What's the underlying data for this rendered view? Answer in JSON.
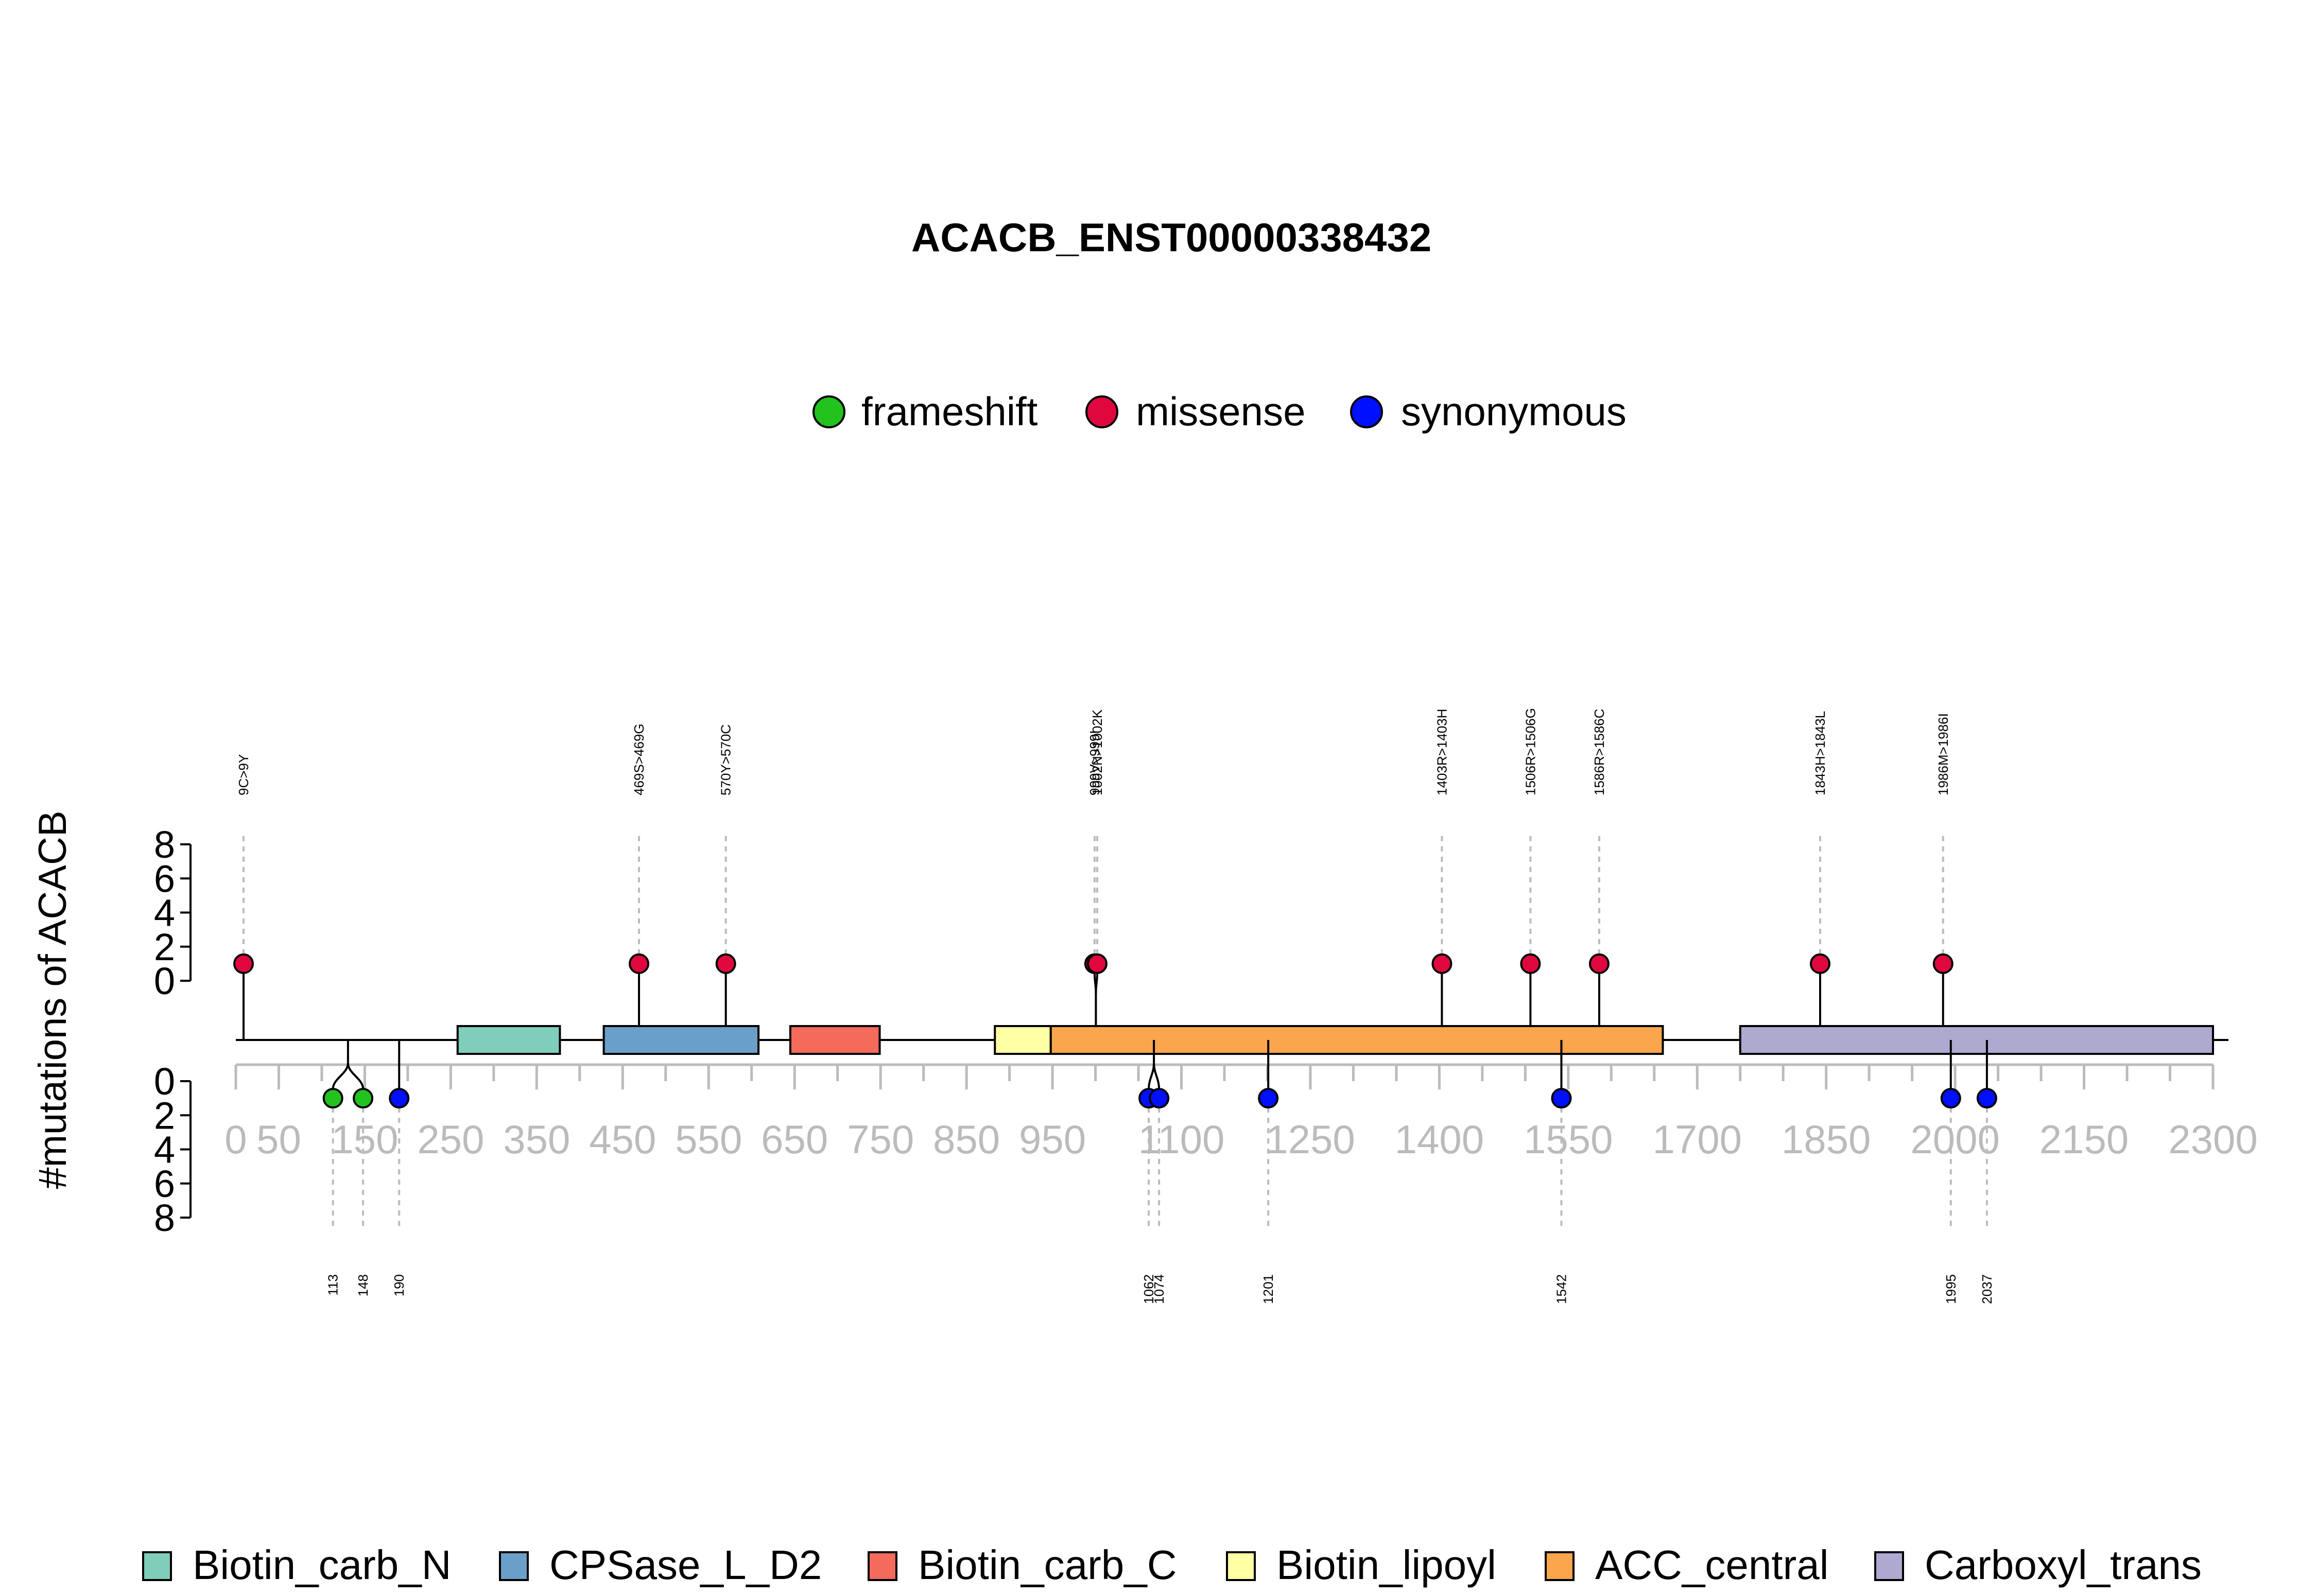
{
  "chart_data": {
    "type": "lollipop",
    "title": "ACACB_ENST00000338432",
    "ylabel": "#mutations of ACACB",
    "legend_position": "top-center",
    "domain_legend_position": "bottom",
    "x_ticks": [
      0,
      50,
      150,
      250,
      350,
      450,
      550,
      650,
      750,
      850,
      950,
      1100,
      1250,
      1400,
      1550,
      1700,
      1850,
      2000,
      2150,
      2300
    ],
    "x_range": [
      0,
      2300
    ],
    "y_range": [
      0,
      8
    ],
    "y_ticks": [
      0,
      2,
      4,
      6,
      8
    ],
    "mutation_types": [
      {
        "name": "frameshift",
        "color": "#22c21f"
      },
      {
        "name": "missense",
        "color": "#e0073f"
      },
      {
        "name": "synonymous",
        "color": "#0010ff"
      }
    ],
    "domains": [
      {
        "name": "Biotin_carb_N",
        "start": 258,
        "end": 377,
        "color": "#7fcdbb"
      },
      {
        "name": "CPSase_L_D2",
        "start": 428,
        "end": 608,
        "color": "#6a9fc9"
      },
      {
        "name": "Biotin_carb_C",
        "start": 645,
        "end": 749,
        "color": "#f46a5b"
      },
      {
        "name": "Biotin_lipoyl",
        "start": 883,
        "end": 948,
        "color": "#ffffa5"
      },
      {
        "name": "ACC_central",
        "start": 948,
        "end": 1660,
        "color": "#fba54d"
      },
      {
        "name": "Carboxyl_trans",
        "start": 1750,
        "end": 2300,
        "color": "#ada9d1"
      }
    ],
    "upper_mutations": [
      {
        "pos": 9,
        "label": "9C>9Y",
        "type": "missense",
        "count": 1
      },
      {
        "pos": 469,
        "label": "469S>469G",
        "type": "missense",
        "count": 1
      },
      {
        "pos": 570,
        "label": "570Y>570C",
        "type": "missense",
        "count": 1
      },
      {
        "pos": 999,
        "label": "999V>999I",
        "type": "missense",
        "count": 1
      },
      {
        "pos": 1002,
        "label": "1002N>1002K",
        "type": "missense",
        "count": 1
      },
      {
        "pos": 1403,
        "label": "1403R>1403H",
        "type": "missense",
        "count": 1
      },
      {
        "pos": 1506,
        "label": "1506R>1506G",
        "type": "missense",
        "count": 1
      },
      {
        "pos": 1586,
        "label": "1586R>1586C",
        "type": "missense",
        "count": 1
      },
      {
        "pos": 1843,
        "label": "1843H>1843L",
        "type": "missense",
        "count": 1
      },
      {
        "pos": 1986,
        "label": "1986M>1986I",
        "type": "missense",
        "count": 1
      }
    ],
    "lower_mutations": [
      {
        "pos": 113,
        "label": "113",
        "type": "frameshift",
        "count": 1
      },
      {
        "pos": 148,
        "label": "148",
        "type": "frameshift",
        "count": 1
      },
      {
        "pos": 190,
        "label": "190",
        "type": "synonymous",
        "count": 1
      },
      {
        "pos": 1062,
        "label": "1062",
        "type": "synonymous",
        "count": 1
      },
      {
        "pos": 1074,
        "label": "1074",
        "type": "synonymous",
        "count": 1
      },
      {
        "pos": 1201,
        "label": "1201",
        "type": "synonymous",
        "count": 1
      },
      {
        "pos": 1542,
        "label": "1542",
        "type": "synonymous",
        "count": 1
      },
      {
        "pos": 1995,
        "label": "1995",
        "type": "synonymous",
        "count": 1
      },
      {
        "pos": 2037,
        "label": "2037",
        "type": "synonymous",
        "count": 1
      }
    ]
  }
}
